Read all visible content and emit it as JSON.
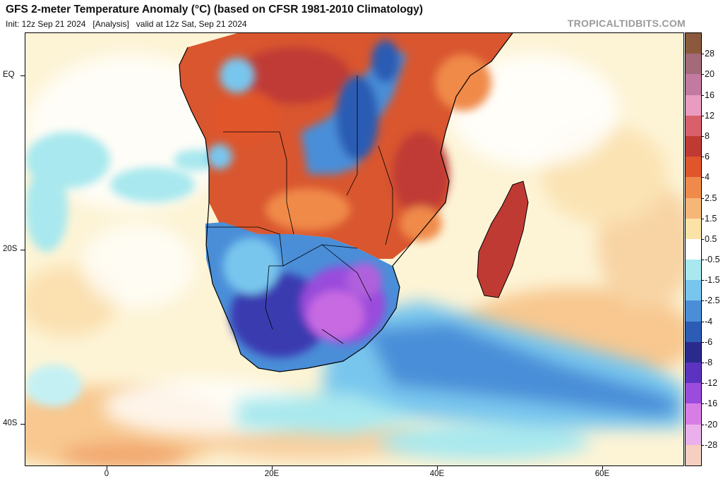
{
  "header": {
    "title": "GFS 2-meter Temperature Anomaly (°C) (based on CFSR 1981-2010 Climatology)",
    "subtitle": "Init: 12z Sep 21 2024   [Analysis]   valid at 12z Sat, Sep 21 2024",
    "source": "TROPICALTIDBITS.COM"
  },
  "axes": {
    "lat_labels": [
      "EQ",
      "20S",
      "40S"
    ],
    "lon_labels": [
      "0",
      "20E",
      "40E",
      "60E"
    ]
  },
  "colorbar": {
    "labels": [
      "28",
      "20",
      "16",
      "12",
      "8",
      "6",
      "4",
      "2.5",
      "1.5",
      "0.5",
      "-0.5",
      "-1.5",
      "-2.5",
      "-4",
      "-6",
      "-8",
      "-12",
      "-16",
      "-20",
      "-28"
    ],
    "colors": [
      "#8b5a3c",
      "#a36a7a",
      "#c27aa0",
      "#e99cc0",
      "#d95f6b",
      "#c03a34",
      "#e0552c",
      "#f08a4a",
      "#f6b677",
      "#fbe3a8",
      "#ffffff",
      "#a8e8ee",
      "#78c6ee",
      "#4a8ed8",
      "#2c5cb4",
      "#2a2a8c",
      "#5c33c0",
      "#9a4cdc",
      "#d77ee6",
      "#eab0ec",
      "#f6cfc0"
    ]
  },
  "legend_colors": {
    "neutral_bg": "#fdf4d6",
    "coast": "#000000"
  }
}
